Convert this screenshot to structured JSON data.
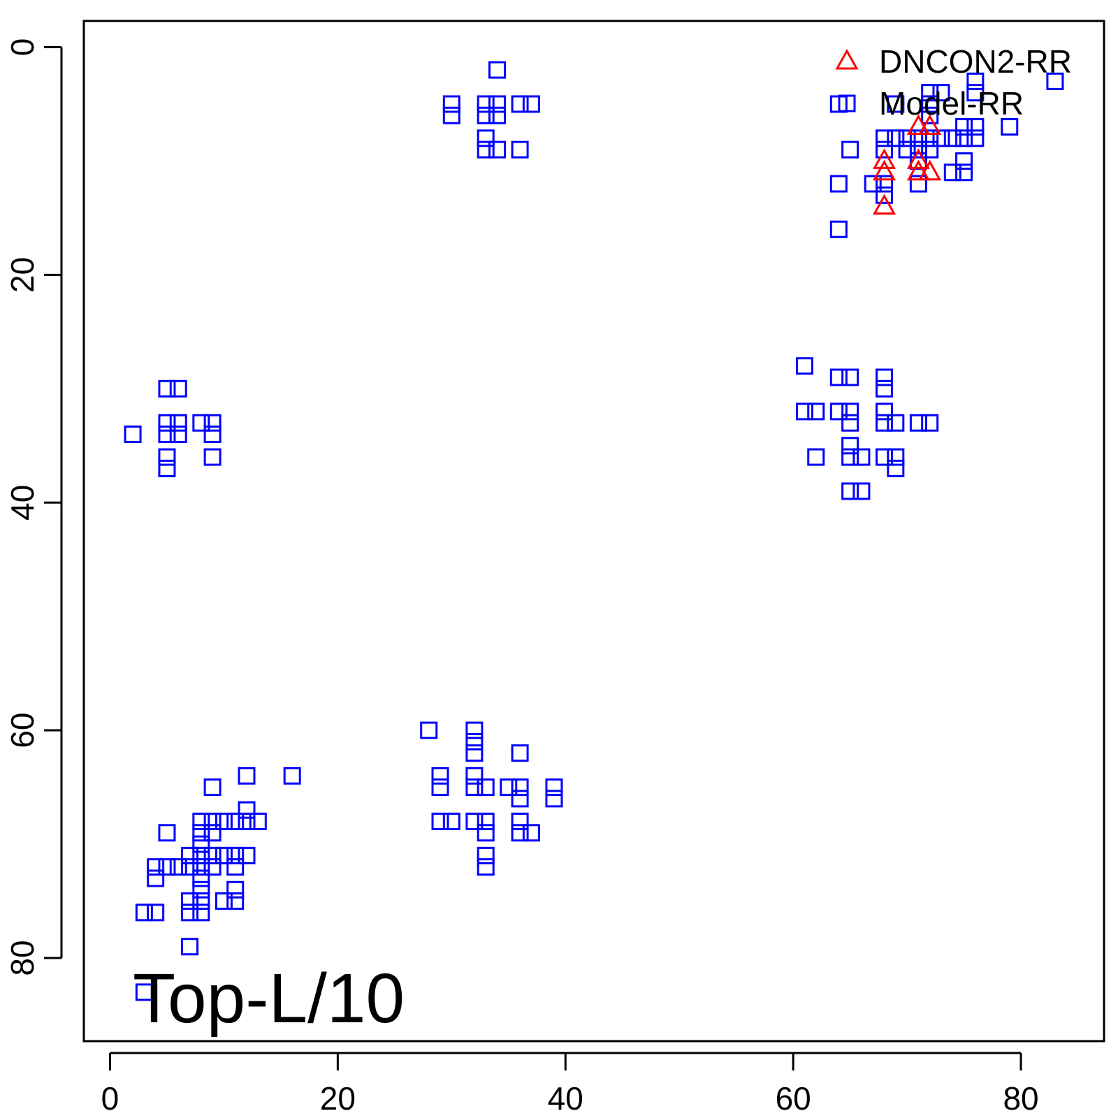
{
  "chart_data": {
    "type": "scatter",
    "annotation": "Top-L/10",
    "xlim": [
      -2.3,
      87.3
    ],
    "ylim": [
      -2.3,
      87.3
    ],
    "y_inverted": true,
    "x_ticks": [
      "0",
      "20",
      "40",
      "60",
      "80"
    ],
    "y_ticks": [
      "0",
      "20",
      "40",
      "60",
      "80"
    ],
    "legend_position": "top-right",
    "series": [
      {
        "name": "DNCON2-RR",
        "marker": "triangle",
        "color": "#ff0000",
        "points": [
          [
            71,
            7
          ],
          [
            72,
            7
          ],
          [
            68,
            10
          ],
          [
            71,
            10
          ],
          [
            68,
            11
          ],
          [
            71,
            11
          ],
          [
            72,
            11
          ],
          [
            68,
            14
          ]
        ]
      },
      {
        "name": "Model-RR",
        "marker": "square",
        "color": "#0000ff",
        "points": [
          [
            34,
            2
          ],
          [
            30,
            5
          ],
          [
            30,
            6
          ],
          [
            33,
            5
          ],
          [
            33,
            6
          ],
          [
            34,
            5
          ],
          [
            34,
            6
          ],
          [
            36,
            5
          ],
          [
            37,
            5
          ],
          [
            33,
            8
          ],
          [
            33,
            9
          ],
          [
            34,
            9
          ],
          [
            36,
            9
          ],
          [
            83,
            3
          ],
          [
            76,
            3
          ],
          [
            76,
            4
          ],
          [
            72,
            4
          ],
          [
            73,
            4
          ],
          [
            64,
            5
          ],
          [
            69,
            5
          ],
          [
            72,
            5
          ],
          [
            72,
            6
          ],
          [
            79,
            7
          ],
          [
            75,
            7
          ],
          [
            76,
            7
          ],
          [
            68,
            8
          ],
          [
            69,
            8
          ],
          [
            70,
            8
          ],
          [
            71,
            8
          ],
          [
            72,
            8
          ],
          [
            73,
            8
          ],
          [
            74,
            8
          ],
          [
            75,
            8
          ],
          [
            76,
            8
          ],
          [
            65,
            9
          ],
          [
            68,
            9
          ],
          [
            70,
            9
          ],
          [
            71,
            9
          ],
          [
            72,
            9
          ],
          [
            71,
            10
          ],
          [
            75,
            10
          ],
          [
            74,
            11
          ],
          [
            75,
            11
          ],
          [
            64,
            12
          ],
          [
            67,
            12
          ],
          [
            68,
            12
          ],
          [
            71,
            12
          ],
          [
            68,
            13
          ],
          [
            64,
            16
          ],
          [
            61,
            28
          ],
          [
            64,
            29
          ],
          [
            65,
            29
          ],
          [
            68,
            29
          ],
          [
            68,
            30
          ],
          [
            61,
            32
          ],
          [
            62,
            32
          ],
          [
            64,
            32
          ],
          [
            65,
            32
          ],
          [
            68,
            32
          ],
          [
            65,
            33
          ],
          [
            68,
            33
          ],
          [
            69,
            33
          ],
          [
            71,
            33
          ],
          [
            72,
            33
          ],
          [
            65,
            35
          ],
          [
            62,
            36
          ],
          [
            65,
            36
          ],
          [
            66,
            36
          ],
          [
            68,
            36
          ],
          [
            69,
            36
          ],
          [
            69,
            37
          ],
          [
            65,
            39
          ],
          [
            66,
            39
          ],
          [
            5,
            30
          ],
          [
            6,
            30
          ],
          [
            5,
            33
          ],
          [
            6,
            33
          ],
          [
            8,
            33
          ],
          [
            9,
            33
          ],
          [
            2,
            34
          ],
          [
            5,
            34
          ],
          [
            6,
            34
          ],
          [
            9,
            34
          ],
          [
            5,
            36
          ],
          [
            9,
            36
          ],
          [
            5,
            37
          ],
          [
            28,
            60
          ],
          [
            32,
            60
          ],
          [
            32,
            61
          ],
          [
            32,
            62
          ],
          [
            36,
            62
          ],
          [
            29,
            64
          ],
          [
            32,
            64
          ],
          [
            29,
            65
          ],
          [
            32,
            65
          ],
          [
            33,
            65
          ],
          [
            35,
            65
          ],
          [
            36,
            65
          ],
          [
            39,
            65
          ],
          [
            36,
            66
          ],
          [
            39,
            66
          ],
          [
            29,
            68
          ],
          [
            30,
            68
          ],
          [
            32,
            68
          ],
          [
            33,
            68
          ],
          [
            36,
            68
          ],
          [
            33,
            69
          ],
          [
            36,
            69
          ],
          [
            37,
            69
          ],
          [
            33,
            71
          ],
          [
            33,
            72
          ],
          [
            12,
            64
          ],
          [
            16,
            64
          ],
          [
            9,
            65
          ],
          [
            12,
            67
          ],
          [
            8,
            68
          ],
          [
            9,
            68
          ],
          [
            10,
            68
          ],
          [
            11,
            68
          ],
          [
            12,
            68
          ],
          [
            13,
            68
          ],
          [
            5,
            69
          ],
          [
            8,
            69
          ],
          [
            9,
            69
          ],
          [
            8,
            70
          ],
          [
            7,
            71
          ],
          [
            8,
            71
          ],
          [
            9,
            71
          ],
          [
            10,
            71
          ],
          [
            11,
            71
          ],
          [
            12,
            71
          ],
          [
            4,
            72
          ],
          [
            5,
            72
          ],
          [
            6,
            72
          ],
          [
            7,
            72
          ],
          [
            8,
            72
          ],
          [
            9,
            72
          ],
          [
            11,
            72
          ],
          [
            4,
            73
          ],
          [
            8,
            73
          ],
          [
            8,
            74
          ],
          [
            11,
            74
          ],
          [
            7,
            75
          ],
          [
            8,
            75
          ],
          [
            10,
            75
          ],
          [
            11,
            75
          ],
          [
            3,
            76
          ],
          [
            4,
            76
          ],
          [
            7,
            76
          ],
          [
            8,
            76
          ],
          [
            7,
            79
          ],
          [
            3,
            83
          ]
        ]
      }
    ]
  }
}
